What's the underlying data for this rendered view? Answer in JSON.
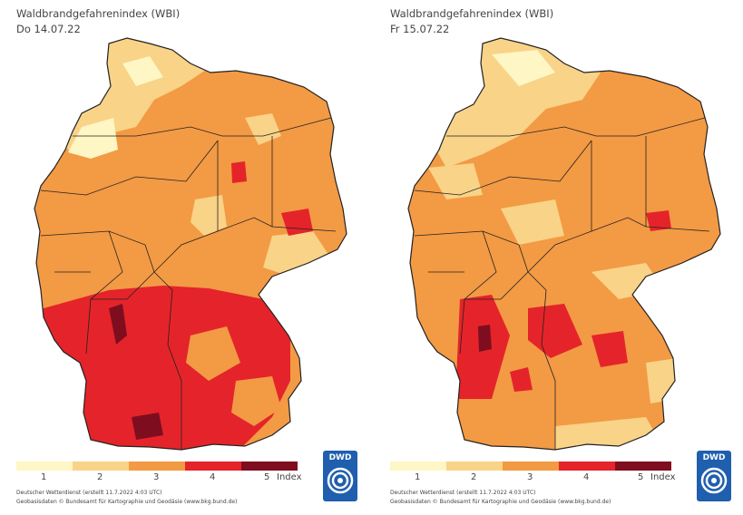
{
  "panels": [
    {
      "title": "Waldbrandgefahrenindex (WBI)",
      "date": "Do 14.07.22",
      "legend": {
        "labels": [
          "1",
          "2",
          "3",
          "4",
          "5"
        ],
        "unit": "Index"
      },
      "credit_line1": "Deutscher Wetterdienst (erstellt 11.7.2022 4:03 UTC)",
      "credit_line2": "Geobasisdaten © Bundesamt für Kartographie und Geodäsie (www.bkg.bund.de)",
      "logo_text": "DWD"
    },
    {
      "title": "Waldbrandgefahrenindex (WBI)",
      "date": "Fr 15.07.22",
      "legend": {
        "labels": [
          "1",
          "2",
          "3",
          "4",
          "5"
        ],
        "unit": "Index"
      },
      "credit_line1": "Deutscher Wetterdienst (erstellt 11.7.2022 4:03 UTC)",
      "credit_line2": "Geobasisdaten © Bundesamt für Kartographie und Geodäsie (www.bkg.bund.de)",
      "logo_text": "DWD"
    }
  ],
  "colors": {
    "level1": "#fef6c4",
    "level2": "#f9d387",
    "level3": "#f39a44",
    "level4": "#e4242a",
    "level5": "#7f0d20",
    "border": "#222222",
    "logo": "#1f5fae"
  }
}
